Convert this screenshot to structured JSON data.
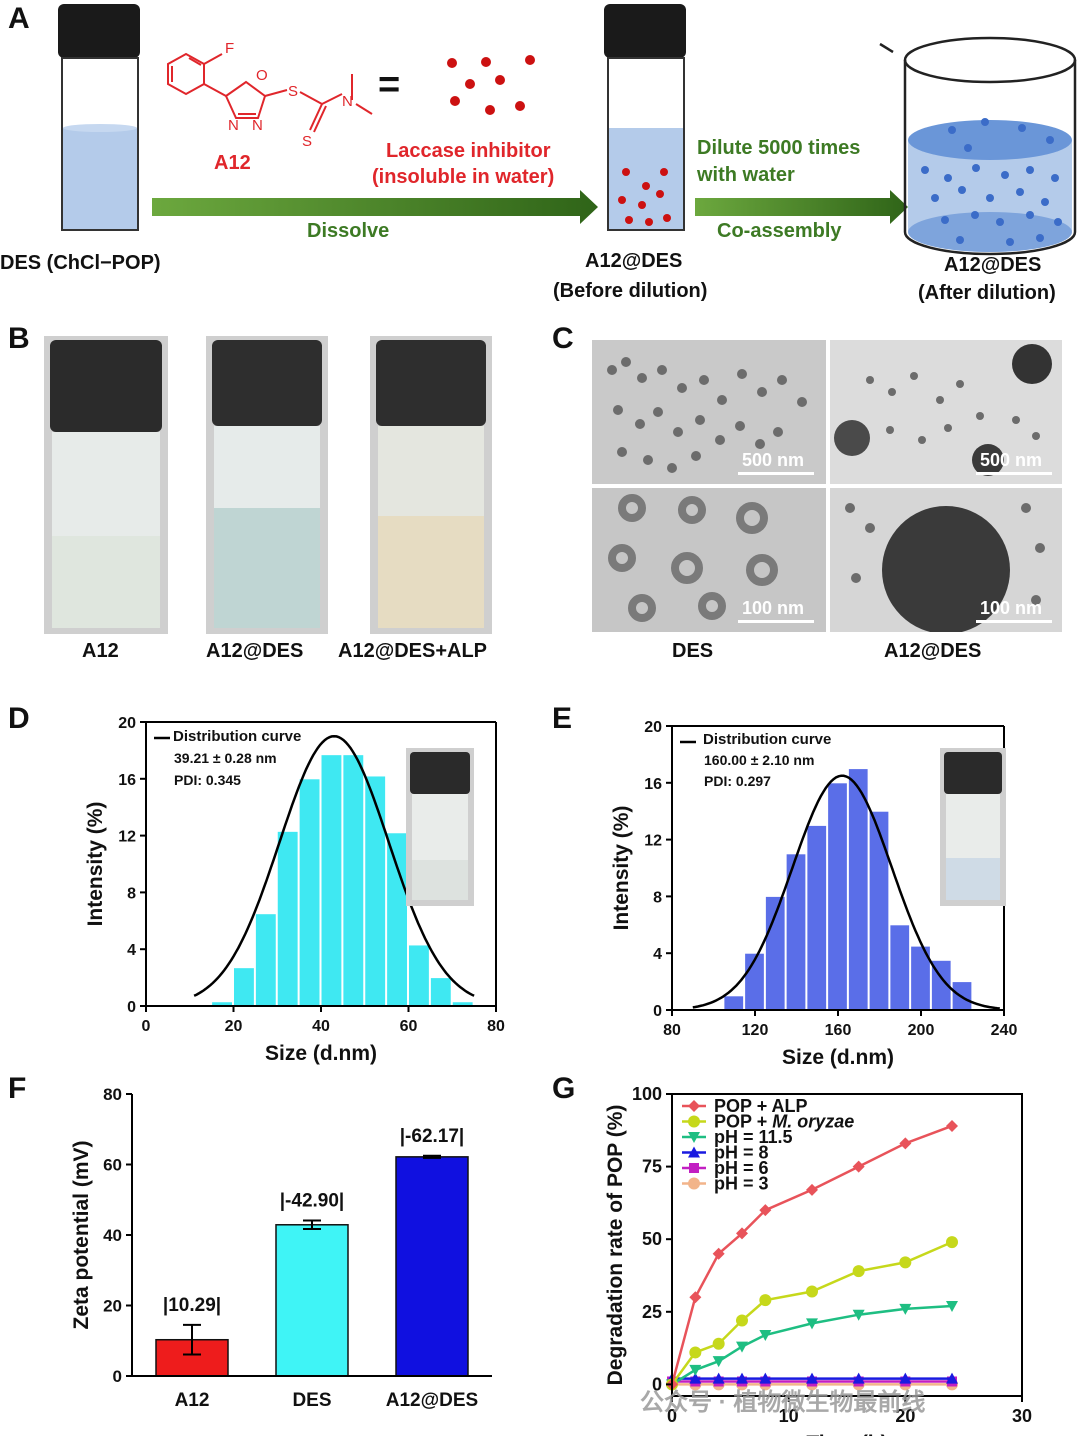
{
  "panel_labels": [
    "A",
    "B",
    "C",
    "D",
    "E",
    "F",
    "G"
  ],
  "panelA": {
    "des_label": "DES (ChCl−POP)",
    "compound_name": "A12",
    "equals": "=",
    "inhibitor_line1": "Laccase inhibitor",
    "inhibitor_line2": "(insoluble in water)",
    "dissolve": "Dissolve",
    "before_line1": "A12@DES",
    "before_line2": "(Before dilution)",
    "dilute_line1": "Dilute 5000 times",
    "dilute_line2": "with water",
    "coassembly": "Co-assembly",
    "after_line1": "A12@DES",
    "after_line2": "(After dilution)",
    "structure_atoms": {
      "F": "F",
      "O": "O",
      "N1": "N",
      "N2": "N",
      "S1": "S",
      "S2": "S",
      "N3": "N"
    }
  },
  "panelB": {
    "labels": [
      "A12",
      "A12@DES",
      "A12@DES+ALP"
    ]
  },
  "panelC": {
    "scale_bars": [
      "500 nm",
      "500 nm",
      "100 nm",
      "100 nm"
    ],
    "col_labels": [
      "DES",
      "A12@DES"
    ]
  },
  "panelD": {
    "legend": "Distribution curve",
    "stat1": "39.21 ± 0.28 nm",
    "stat2": "PDI: 0.345"
  },
  "panelE": {
    "legend": "Distribution curve",
    "stat1": "160.00 ± 2.10 nm",
    "stat2": "PDI: 0.297"
  },
  "panelF": {
    "bar_labels": [
      "|10.29|",
      "|-42.90|",
      "|-62.17|"
    ]
  },
  "watermark": "公众号 · 植物微生物最前线",
  "colors": {
    "cyan": "#3fe8f2",
    "blue": "#5a6ee8",
    "red": "#ee1c1c",
    "darkblue": "#1010e0",
    "arrow": "#3a7a1e"
  },
  "chart_data": [
    {
      "id": "D",
      "type": "bar",
      "xlabel": "Size (d.nm)",
      "ylabel": "Intensity (%)",
      "xlim": [
        0,
        80
      ],
      "ylim": [
        0,
        20
      ],
      "xticks": [
        0,
        20,
        40,
        60,
        80
      ],
      "yticks": [
        0,
        4,
        8,
        12,
        16,
        20
      ],
      "bin_width": 5,
      "x": [
        17.5,
        22.5,
        27.5,
        32.5,
        37.5,
        42.5,
        47.5,
        52.5,
        57.5,
        62.5,
        67.5,
        72.5
      ],
      "values": [
        0.3,
        2.7,
        6.5,
        12.3,
        16.0,
        17.7,
        17.7,
        16.2,
        12.2,
        4.3,
        2.0,
        0.3
      ],
      "curve": {
        "name": "Distribution curve",
        "mean": 43,
        "sd": 12.5,
        "peak": 19,
        "range": [
          11,
          75
        ]
      },
      "color": "#3fe8f2"
    },
    {
      "id": "E",
      "type": "bar",
      "xlabel": "Size (d.nm)",
      "ylabel": "Intensity (%)",
      "xlim": [
        80,
        240
      ],
      "ylim": [
        0,
        20
      ],
      "xticks": [
        80,
        120,
        160,
        200,
        240
      ],
      "yticks": [
        0,
        4,
        8,
        12,
        16,
        20
      ],
      "bin_width": 10,
      "x": [
        110,
        120,
        130,
        140,
        150,
        160,
        170,
        180,
        190,
        200,
        210,
        220
      ],
      "values": [
        1.0,
        4.0,
        8.0,
        11.0,
        13.0,
        16.0,
        17.0,
        14.0,
        6.0,
        4.5,
        3.5,
        2.0
      ],
      "curve": {
        "name": "Distribution curve",
        "mean": 162,
        "sd": 24,
        "peak": 16.5,
        "range": [
          90,
          238
        ]
      },
      "color": "#5a6ee8"
    },
    {
      "id": "F",
      "type": "bar",
      "categories": [
        "A12",
        "DES",
        "A12@DES"
      ],
      "values": [
        10.29,
        42.9,
        62.17
      ],
      "errors": [
        4.2,
        1.2,
        0.3
      ],
      "ylabel": "Zeta potential (mV)",
      "ylim": [
        0,
        80
      ],
      "yticks": [
        0,
        20,
        40,
        60,
        80
      ],
      "colors": [
        "#ee1c1c",
        "#3ff4f6",
        "#1010e0"
      ]
    },
    {
      "id": "G",
      "type": "line",
      "xlabel": "Time (h)",
      "ylabel": "Degradation rate of POP (%)",
      "xlim": [
        0,
        30
      ],
      "ylim": [
        0,
        100
      ],
      "xticks": [
        0,
        10,
        20,
        30
      ],
      "yticks": [
        0,
        25,
        50,
        75,
        100
      ],
      "x": [
        0,
        2,
        4,
        6,
        8,
        12,
        16,
        20,
        24
      ],
      "series": [
        {
          "name": "POP + ALP",
          "values": [
            0,
            30,
            45,
            52,
            60,
            67,
            75,
            83,
            89
          ],
          "color": "#e8535a",
          "marker": "diamond"
        },
        {
          "name": "POP + M. oryzae",
          "values": [
            0,
            11,
            14,
            22,
            29,
            32,
            39,
            42,
            49
          ],
          "color": "#c6d81b",
          "marker": "circle"
        },
        {
          "name": "pH = 11.5",
          "values": [
            0,
            5,
            8,
            13,
            17,
            21,
            24,
            26,
            27
          ],
          "color": "#1ebe82",
          "marker": "triangle-down"
        },
        {
          "name": "pH = 8",
          "values": [
            2,
            2,
            2,
            2,
            2,
            2,
            2,
            2,
            2
          ],
          "color": "#1a1ae0",
          "marker": "triangle-up"
        },
        {
          "name": "pH = 6",
          "values": [
            1,
            1,
            1,
            1,
            1,
            1,
            1,
            1,
            1
          ],
          "color": "#c21fc2",
          "marker": "square"
        },
        {
          "name": "pH = 3",
          "values": [
            0,
            0,
            0,
            0,
            0,
            0,
            0,
            0,
            0
          ],
          "color": "#f2b48a",
          "marker": "circle"
        }
      ]
    }
  ]
}
